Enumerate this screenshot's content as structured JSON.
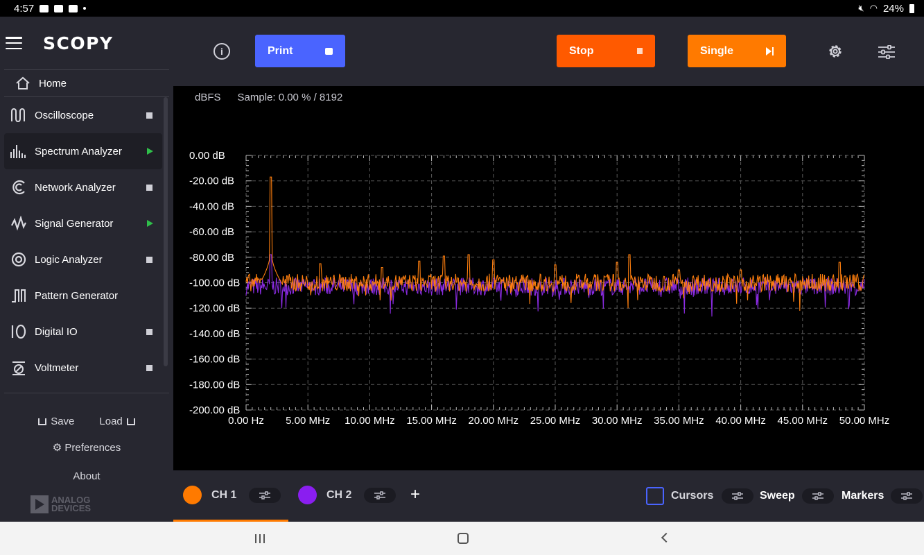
{
  "status_bar": {
    "time": "4:57",
    "battery": "24%"
  },
  "sidebar": {
    "logo": "SCOPY",
    "home_label": "Home",
    "items": [
      {
        "label": "Oscilloscope",
        "status": "stopped",
        "icon": "oscilloscope-icon"
      },
      {
        "label": "Spectrum Analyzer",
        "status": "running",
        "icon": "spectrum-analyzer-icon"
      },
      {
        "label": "Network Analyzer",
        "status": "stopped",
        "icon": "network-analyzer-icon"
      },
      {
        "label": "Signal Generator",
        "status": "running",
        "icon": "signal-generator-icon"
      },
      {
        "label": "Logic Analyzer",
        "status": "stopped",
        "icon": "logic-analyzer-icon"
      },
      {
        "label": "Pattern Generator",
        "status": "none",
        "icon": "pattern-generator-icon"
      },
      {
        "label": "Digital IO",
        "status": "stopped",
        "icon": "digital-io-icon"
      },
      {
        "label": "Voltmeter",
        "status": "stopped",
        "icon": "voltmeter-icon"
      }
    ],
    "save_label": "Save",
    "load_label": "Load",
    "preferences_label": "Preferences",
    "about_label": "About",
    "brand_line1": "ANALOG",
    "brand_line2": "DEVICES"
  },
  "toolbar": {
    "print_label": "Print",
    "stop_label": "Stop",
    "single_label": "Single"
  },
  "plot": {
    "unit_label": "dBFS",
    "sample_label": "Sample: 0.00 % / 8192"
  },
  "chart_data": {
    "type": "line",
    "ylim": [
      -200,
      0
    ],
    "xlim": [
      0,
      50
    ],
    "y_ticks": [
      "0.00 dB",
      "-20.00 dB",
      "-40.00 dB",
      "-60.00 dB",
      "-80.00 dB",
      "-100.00 dB",
      "-120.00 dB",
      "-140.00 dB",
      "-160.00 dB",
      "-180.00 dB",
      "-200.00 dB"
    ],
    "x_ticks": [
      "0.00 Hz",
      "5.00 MHz",
      "10.00 MHz",
      "15.00 MHz",
      "20.00 MHz",
      "25.00 MHz",
      "30.00 MHz",
      "35.00 MHz",
      "40.00 MHz",
      "45.00 MHz",
      "50.00 MHz"
    ],
    "grid": true,
    "series": [
      {
        "color": "#ff7f0e",
        "noise_floor_db": -100,
        "peaks": [
          [
            2.0,
            -17
          ],
          [
            6.0,
            -85
          ],
          [
            11.0,
            -88
          ],
          [
            14.0,
            -83
          ],
          [
            16.0,
            -79
          ],
          [
            18.0,
            -78
          ],
          [
            20.0,
            -82
          ],
          [
            25.0,
            -86
          ],
          [
            30.0,
            -84
          ],
          [
            31.0,
            -78
          ],
          [
            35.0,
            -90
          ],
          [
            40.0,
            -90
          ],
          [
            48.0,
            -84
          ]
        ]
      },
      {
        "color": "#8a2be2",
        "noise_floor_db": -103,
        "peaks": [
          [
            2.0,
            -78
          ]
        ]
      }
    ]
  },
  "channels": {
    "ch1_label": "CH 1",
    "ch1_color": "#ff7a00",
    "ch2_label": "CH 2",
    "ch2_color": "#8a1ef0",
    "add_label": "+",
    "cursors_label": "Cursors",
    "sweep_label": "Sweep",
    "markers_label": "Markers"
  }
}
